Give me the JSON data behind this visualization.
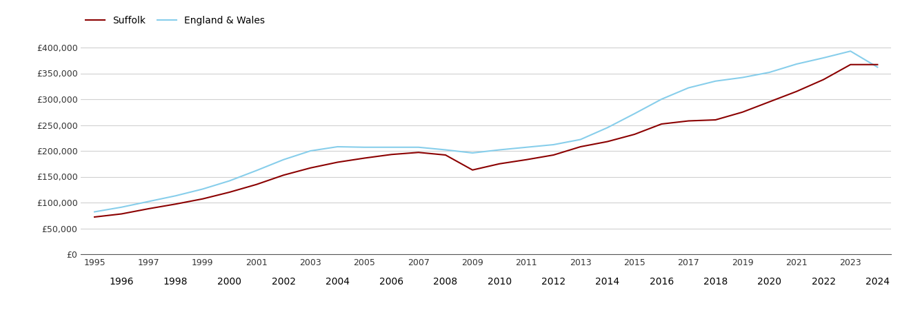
{
  "suffolk": {
    "years": [
      1995,
      1996,
      1997,
      1998,
      1999,
      2000,
      2001,
      2002,
      2003,
      2004,
      2005,
      2006,
      2007,
      2008,
      2009,
      2010,
      2011,
      2012,
      2013,
      2014,
      2015,
      2016,
      2017,
      2018,
      2019,
      2020,
      2021,
      2022,
      2023,
      2024
    ],
    "values": [
      72000,
      78000,
      88000,
      97000,
      107000,
      120000,
      135000,
      153000,
      167000,
      178000,
      186000,
      193000,
      197000,
      192000,
      163000,
      175000,
      183000,
      192000,
      208000,
      218000,
      232000,
      252000,
      258000,
      260000,
      275000,
      295000,
      315000,
      338000,
      367000,
      367000
    ]
  },
  "england_wales": {
    "years": [
      1995,
      1996,
      1997,
      1998,
      1999,
      2000,
      2001,
      2002,
      2003,
      2004,
      2005,
      2006,
      2007,
      2008,
      2009,
      2010,
      2011,
      2012,
      2013,
      2014,
      2015,
      2016,
      2017,
      2018,
      2019,
      2020,
      2021,
      2022,
      2023,
      2024
    ],
    "values": [
      82000,
      91000,
      102000,
      113000,
      126000,
      142000,
      162000,
      183000,
      200000,
      208000,
      207000,
      207000,
      207000,
      202000,
      196000,
      202000,
      207000,
      212000,
      222000,
      245000,
      272000,
      300000,
      322000,
      335000,
      342000,
      352000,
      368000,
      380000,
      393000,
      362000
    ]
  },
  "suffolk_color": "#8B0000",
  "england_wales_color": "#87CEEB",
  "background_color": "#ffffff",
  "grid_color": "#d0d0d0",
  "ylim": [
    0,
    420000
  ],
  "yticks": [
    0,
    50000,
    100000,
    150000,
    200000,
    250000,
    300000,
    350000,
    400000
  ],
  "odd_years": [
    1995,
    1997,
    1999,
    2001,
    2003,
    2005,
    2007,
    2009,
    2011,
    2013,
    2015,
    2017,
    2019,
    2021,
    2023
  ],
  "even_years": [
    1996,
    1998,
    2000,
    2002,
    2004,
    2006,
    2008,
    2010,
    2012,
    2014,
    2016,
    2018,
    2020,
    2022,
    2024
  ],
  "legend_suffolk": "Suffolk",
  "legend_ew": "England & Wales"
}
